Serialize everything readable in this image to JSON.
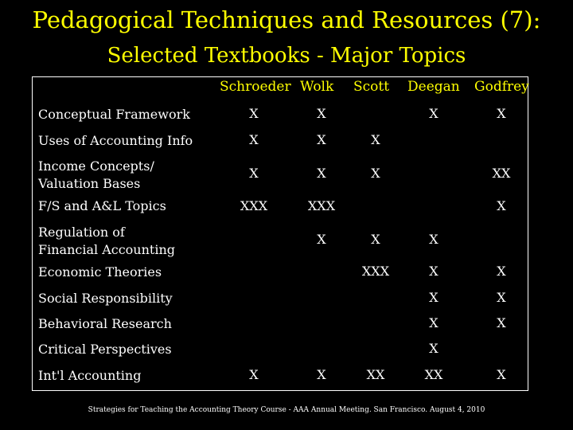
{
  "title": "Pedagogical Techniques and Resources (7):",
  "subtitle": "Selected Textbooks - Major Topics",
  "columns": [
    "Schroeder",
    "Wolk",
    "Scott",
    "Deegan",
    "Godfrey"
  ],
  "rows": [
    {
      "label_lines": [
        "Conceptual Framework"
      ],
      "cells": [
        "X",
        "X",
        "",
        "X",
        "X"
      ]
    },
    {
      "label_lines": [
        "Uses of Accounting Info"
      ],
      "cells": [
        "X",
        "X",
        "X",
        "",
        ""
      ]
    },
    {
      "label_lines": [
        "Income Concepts/",
        "Valuation Bases"
      ],
      "cells": [
        "X",
        "X",
        "X",
        "",
        "XX"
      ]
    },
    {
      "label_lines": [
        "F/S and A&L Topics"
      ],
      "cells": [
        "XXX",
        "XXX",
        "",
        "",
        "X"
      ]
    },
    {
      "label_lines": [
        "Regulation of",
        "Financial Accounting"
      ],
      "cells": [
        "",
        "X",
        "X",
        "X",
        ""
      ]
    },
    {
      "label_lines": [
        "Economic  Theories"
      ],
      "cells": [
        "",
        "",
        "XXX",
        "X",
        "X"
      ]
    },
    {
      "label_lines": [
        "Social Responsibility"
      ],
      "cells": [
        "",
        "",
        "",
        "X",
        "X"
      ]
    },
    {
      "label_lines": [
        "Behavioral Research"
      ],
      "cells": [
        "",
        "",
        "",
        "X",
        "X"
      ]
    },
    {
      "label_lines": [
        "Critical Perspectives"
      ],
      "cells": [
        "",
        "",
        "",
        "X",
        ""
      ]
    },
    {
      "label_lines": [
        "Int'l Accounting"
      ],
      "cells": [
        "X",
        "X",
        "XX",
        "XX",
        "X"
      ]
    }
  ],
  "footer": "Strategies for Teaching the Accounting Theory Course - AAA Annual Meeting.  San Francisco.  August 4, 2010"
}
